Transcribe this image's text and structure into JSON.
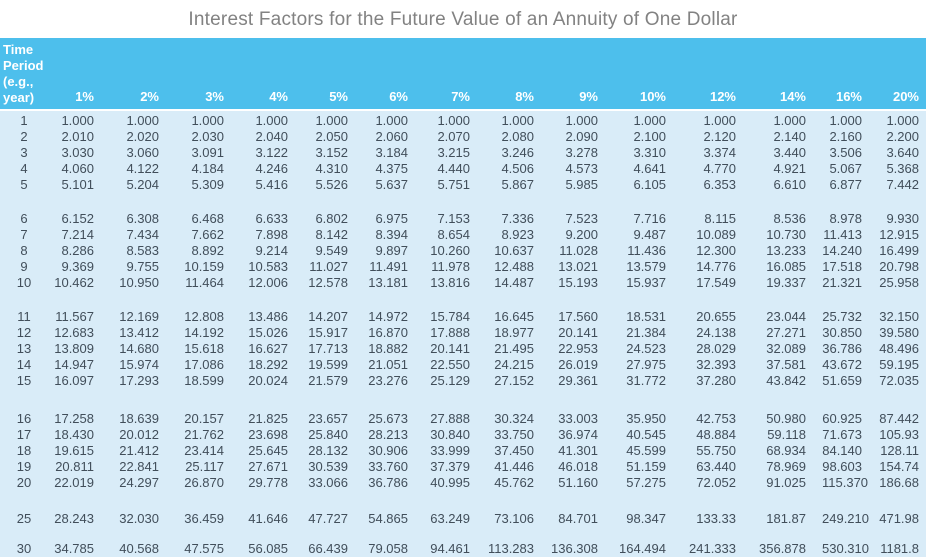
{
  "title": "Interest Factors for the Future Value of an Annuity of One Dollar",
  "colors": {
    "header_bg": "#4dbfec",
    "body_bg": "#d9ecf8",
    "header_text": "#ffffff",
    "body_text": "#414e5a",
    "title_text": "#828282"
  },
  "table": {
    "corner_header_lines": [
      "Time",
      "Period",
      "(e.g.,",
      "year)"
    ],
    "rate_headers": [
      "1%",
      "2%",
      "3%",
      "4%",
      "5%",
      "6%",
      "7%",
      "8%",
      "9%",
      "10%",
      "12%",
      "14%",
      "16%",
      "20%"
    ],
    "groups": [
      {
        "rows": [
          {
            "period": "1",
            "values": [
              "1.000",
              "1.000",
              "1.000",
              "1.000",
              "1.000",
              "1.000",
              "1.000",
              "1.000",
              "1.000",
              "1.000",
              "1.000",
              "1.000",
              "1.000",
              "1.000"
            ]
          },
          {
            "period": "2",
            "values": [
              "2.010",
              "2.020",
              "2.030",
              "2.040",
              "2.050",
              "2.060",
              "2.070",
              "2.080",
              "2.090",
              "2.100",
              "2.120",
              "2.140",
              "2.160",
              "2.200"
            ]
          },
          {
            "period": "3",
            "values": [
              "3.030",
              "3.060",
              "3.091",
              "3.122",
              "3.152",
              "3.184",
              "3.215",
              "3.246",
              "3.278",
              "3.310",
              "3.374",
              "3.440",
              "3.506",
              "3.640"
            ]
          },
          {
            "period": "4",
            "values": [
              "4.060",
              "4.122",
              "4.184",
              "4.246",
              "4.310",
              "4.375",
              "4.440",
              "4.506",
              "4.573",
              "4.641",
              "4.770",
              "4.921",
              "5.067",
              "5.368"
            ]
          },
          {
            "period": "5",
            "values": [
              "5.101",
              "5.204",
              "5.309",
              "5.416",
              "5.526",
              "5.637",
              "5.751",
              "5.867",
              "5.985",
              "6.105",
              "6.353",
              "6.610",
              "6.877",
              "7.442"
            ]
          }
        ]
      },
      {
        "rows": [
          {
            "period": "6",
            "values": [
              "6.152",
              "6.308",
              "6.468",
              "6.633",
              "6.802",
              "6.975",
              "7.153",
              "7.336",
              "7.523",
              "7.716",
              "8.115",
              "8.536",
              "8.978",
              "9.930"
            ]
          },
          {
            "period": "7",
            "values": [
              "7.214",
              "7.434",
              "7.662",
              "7.898",
              "8.142",
              "8.394",
              "8.654",
              "8.923",
              "9.200",
              "9.487",
              "10.089",
              "10.730",
              "11.413",
              "12.915"
            ]
          },
          {
            "period": "8",
            "values": [
              "8.286",
              "8.583",
              "8.892",
              "9.214",
              "9.549",
              "9.897",
              "10.260",
              "10.637",
              "11.028",
              "11.436",
              "12.300",
              "13.233",
              "14.240",
              "16.499"
            ]
          },
          {
            "period": "9",
            "values": [
              "9.369",
              "9.755",
              "10.159",
              "10.583",
              "11.027",
              "11.491",
              "11.978",
              "12.488",
              "13.021",
              "13.579",
              "14.776",
              "16.085",
              "17.518",
              "20.798"
            ]
          },
          {
            "period": "10",
            "values": [
              "10.462",
              "10.950",
              "11.464",
              "12.006",
              "12.578",
              "13.181",
              "13.816",
              "14.487",
              "15.193",
              "15.937",
              "17.549",
              "19.337",
              "21.321",
              "25.958"
            ]
          }
        ]
      },
      {
        "rows": [
          {
            "period": "11",
            "values": [
              "11.567",
              "12.169",
              "12.808",
              "13.486",
              "14.207",
              "14.972",
              "15.784",
              "16.645",
              "17.560",
              "18.531",
              "20.655",
              "23.044",
              "25.732",
              "32.150"
            ]
          },
          {
            "period": "12",
            "values": [
              "12.683",
              "13.412",
              "14.192",
              "15.026",
              "15.917",
              "16.870",
              "17.888",
              "18.977",
              "20.141",
              "21.384",
              "24.138",
              "27.271",
              "30.850",
              "39.580"
            ]
          },
          {
            "period": "13",
            "values": [
              "13.809",
              "14.680",
              "15.618",
              "16.627",
              "17.713",
              "18.882",
              "20.141",
              "21.495",
              "22.953",
              "24.523",
              "28.029",
              "32.089",
              "36.786",
              "48.496"
            ]
          },
          {
            "period": "14",
            "values": [
              "14.947",
              "15.974",
              "17.086",
              "18.292",
              "19.599",
              "21.051",
              "22.550",
              "24.215",
              "26.019",
              "27.975",
              "32.393",
              "37.581",
              "43.672",
              "59.195"
            ]
          },
          {
            "period": "15",
            "values": [
              "16.097",
              "17.293",
              "18.599",
              "20.024",
              "21.579",
              "23.276",
              "25.129",
              "27.152",
              "29.361",
              "31.772",
              "37.280",
              "43.842",
              "51.659",
              "72.035"
            ]
          }
        ]
      },
      {
        "rows": [
          {
            "period": "16",
            "values": [
              "17.258",
              "18.639",
              "20.157",
              "21.825",
              "23.657",
              "25.673",
              "27.888",
              "30.324",
              "33.003",
              "35.950",
              "42.753",
              "50.980",
              "60.925",
              "87.442"
            ]
          },
          {
            "period": "17",
            "values": [
              "18.430",
              "20.012",
              "21.762",
              "23.698",
              "25.840",
              "28.213",
              "30.840",
              "33.750",
              "36.974",
              "40.545",
              "48.884",
              "59.118",
              "71.673",
              "105.93"
            ]
          },
          {
            "period": "18",
            "values": [
              "19.615",
              "21.412",
              "23.414",
              "25.645",
              "28.132",
              "30.906",
              "33.999",
              "37.450",
              "41.301",
              "45.599",
              "55.750",
              "68.934",
              "84.140",
              "128.11"
            ]
          },
          {
            "period": "19",
            "values": [
              "20.811",
              "22.841",
              "25.117",
              "27.671",
              "30.539",
              "33.760",
              "37.379",
              "41.446",
              "46.018",
              "51.159",
              "63.440",
              "78.969",
              "98.603",
              "154.74"
            ]
          },
          {
            "period": "20",
            "values": [
              "22.019",
              "24.297",
              "26.870",
              "29.778",
              "33.066",
              "36.786",
              "40.995",
              "45.762",
              "51.160",
              "57.275",
              "72.052",
              "91.025",
              "115.370",
              "186.68"
            ]
          }
        ]
      },
      {
        "rows": [
          {
            "period": "25",
            "values": [
              "28.243",
              "32.030",
              "36.459",
              "41.646",
              "47.727",
              "54.865",
              "63.249",
              "73.106",
              "84.701",
              "98.347",
              "133.33",
              "181.87",
              "249.210",
              "471.98"
            ]
          }
        ]
      },
      {
        "rows": [
          {
            "period": "30",
            "values": [
              "34.785",
              "40.568",
              "47.575",
              "56.085",
              "66.439",
              "79.058",
              "94.461",
              "113.283",
              "136.308",
              "164.494",
              "241.333",
              "356.878",
              "530.310",
              "1181.8"
            ]
          }
        ]
      }
    ]
  }
}
